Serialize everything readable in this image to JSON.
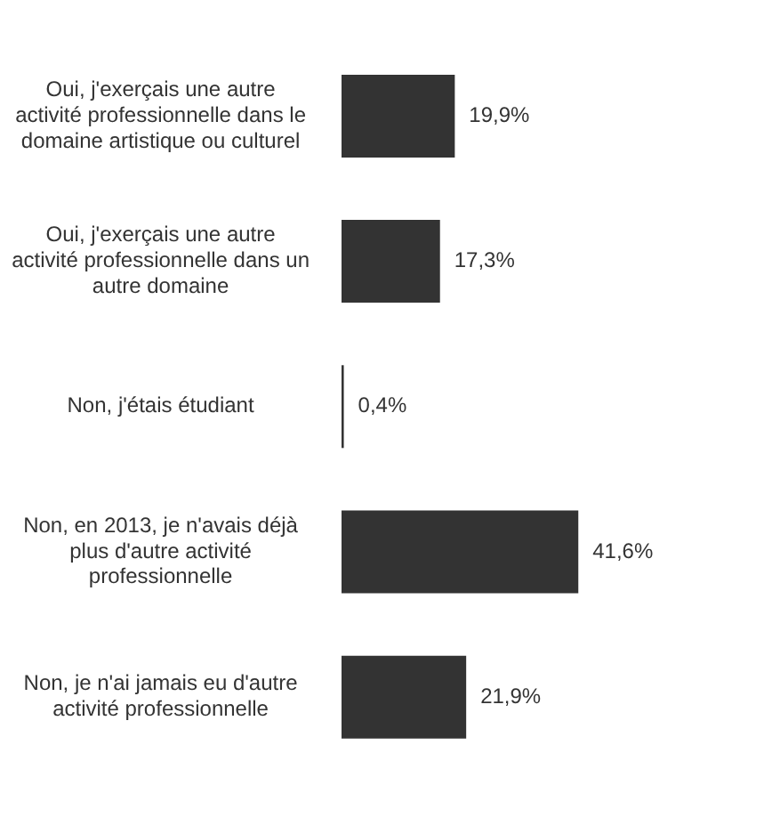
{
  "chart_data": {
    "type": "bar",
    "orientation": "horizontal",
    "categories": [
      "Oui, j'exerçais une autre activité professionnelle dans le domaine artistique ou culturel",
      "Oui, j'exerçais une autre activité professionnelle dans un autre domaine",
      "Non, j'étais étudiant",
      "Non, en 2013, je n'avais déjà plus d'autre activité professionnelle",
      "Non, je n'ai jamais eu d'autre activité professionnelle"
    ],
    "values": [
      19.9,
      17.3,
      0.4,
      41.6,
      21.9
    ],
    "value_labels": [
      "19,9%",
      "17,3%",
      "0,4%",
      "41,6%",
      "21,9%"
    ],
    "color": "#333333",
    "legend": false,
    "tick_labels": "y"
  }
}
